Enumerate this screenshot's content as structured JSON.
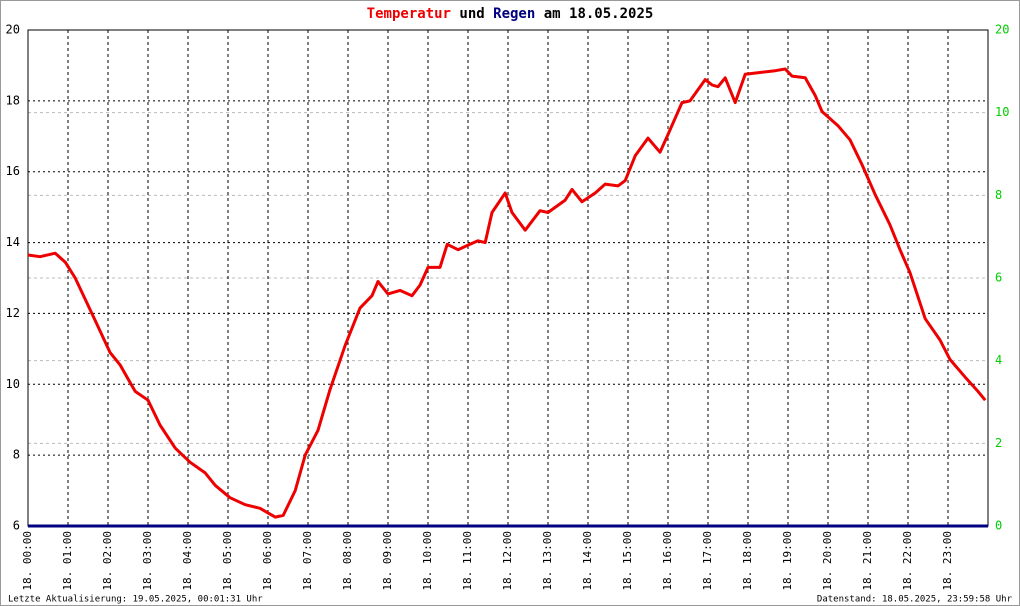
{
  "chart_data": {
    "type": "line",
    "title_parts": [
      "Temperatur",
      "und",
      "Regen",
      "am 18.05.2025"
    ],
    "footer_left": "Letzte Aktualisierung: 19.05.2025, 00:01:31 Uhr",
    "footer_right": "Datenstand: 18.05.2025, 23:59:58 Uhr",
    "xlim": [
      0,
      24
    ],
    "xticks": [
      {
        "value": 0,
        "label": "18. 00:00"
      },
      {
        "value": 1,
        "label": "18. 01:00"
      },
      {
        "value": 2,
        "label": "18. 02:00"
      },
      {
        "value": 3,
        "label": "18. 03:00"
      },
      {
        "value": 4,
        "label": "18. 04:00"
      },
      {
        "value": 5,
        "label": "18. 05:00"
      },
      {
        "value": 6,
        "label": "18. 06:00"
      },
      {
        "value": 7,
        "label": "18. 07:00"
      },
      {
        "value": 8,
        "label": "18. 08:00"
      },
      {
        "value": 9,
        "label": "18. 09:00"
      },
      {
        "value": 10,
        "label": "18. 10:00"
      },
      {
        "value": 11,
        "label": "18. 11:00"
      },
      {
        "value": 12,
        "label": "18. 12:00"
      },
      {
        "value": 13,
        "label": "18. 13:00"
      },
      {
        "value": 14,
        "label": "18. 14:00"
      },
      {
        "value": 15,
        "label": "18. 15:00"
      },
      {
        "value": 16,
        "label": "18. 16:00"
      },
      {
        "value": 17,
        "label": "18. 17:00"
      },
      {
        "value": 18,
        "label": "18. 18:00"
      },
      {
        "value": 19,
        "label": "18. 19:00"
      },
      {
        "value": 20,
        "label": "18. 20:00"
      },
      {
        "value": 21,
        "label": "18. 21:00"
      },
      {
        "value": 22,
        "label": "18. 22:00"
      },
      {
        "value": 23,
        "label": "18. 23:00"
      }
    ],
    "ylim": [
      6,
      20
    ],
    "yticks": [
      6,
      8,
      10,
      12,
      14,
      16,
      18,
      20
    ],
    "y2lim": [
      0,
      12
    ],
    "y2ticks": [
      0,
      2,
      4,
      6,
      8,
      10
    ],
    "y2_top_label": "20",
    "grid": true,
    "series": [
      {
        "name": "Temperatur",
        "color": "#ee0000",
        "x": [
          0,
          0.3,
          0.68,
          0.93,
          1.18,
          1.43,
          1.68,
          2.05,
          2.3,
          2.68,
          3.0,
          3.3,
          3.68,
          4.05,
          4.43,
          4.68,
          5.05,
          5.43,
          5.8,
          6.18,
          6.38,
          6.68,
          6.93,
          7.25,
          7.55,
          7.93,
          8.3,
          8.6,
          8.75,
          9.0,
          9.3,
          9.6,
          9.8,
          10.0,
          10.3,
          10.48,
          10.75,
          11.05,
          11.25,
          11.43,
          11.6,
          11.93,
          12.1,
          12.43,
          12.8,
          13.0,
          13.43,
          13.6,
          13.85,
          14.18,
          14.43,
          14.75,
          14.93,
          15.18,
          15.5,
          15.8,
          16.0,
          16.35,
          16.55,
          16.93,
          17.1,
          17.25,
          17.43,
          17.68,
          17.93,
          18.3,
          18.68,
          18.93,
          19.1,
          19.43,
          19.68,
          19.85,
          20.25,
          20.55,
          20.85,
          21.18,
          21.55,
          21.8,
          22.05,
          22.43,
          22.8,
          23.05,
          23.43,
          23.75,
          23.93
        ],
        "values": [
          13.65,
          13.6,
          13.7,
          13.45,
          13.0,
          12.4,
          11.8,
          10.9,
          10.55,
          9.8,
          9.55,
          8.85,
          8.2,
          7.8,
          7.5,
          7.15,
          6.8,
          6.6,
          6.5,
          6.25,
          6.3,
          7.0,
          8.0,
          8.7,
          9.85,
          11.1,
          12.15,
          12.5,
          12.9,
          12.55,
          12.65,
          12.5,
          12.8,
          13.3,
          13.3,
          13.95,
          13.8,
          13.95,
          14.05,
          14.0,
          14.85,
          15.4,
          14.85,
          14.35,
          14.9,
          14.85,
          15.2,
          15.5,
          15.15,
          15.4,
          15.65,
          15.6,
          15.75,
          16.45,
          16.95,
          16.55,
          17.05,
          17.95,
          18.0,
          18.6,
          18.45,
          18.4,
          18.65,
          17.95,
          18.75,
          18.8,
          18.85,
          18.9,
          18.7,
          18.65,
          18.15,
          17.7,
          17.3,
          16.9,
          16.2,
          15.35,
          14.5,
          13.8,
          13.15,
          11.85,
          11.25,
          10.7,
          10.2,
          9.8,
          9.55
        ]
      },
      {
        "name": "Regen",
        "color": "#000080",
        "axis": "y2",
        "x": [
          0,
          24
        ],
        "values": [
          0,
          0
        ]
      }
    ]
  }
}
